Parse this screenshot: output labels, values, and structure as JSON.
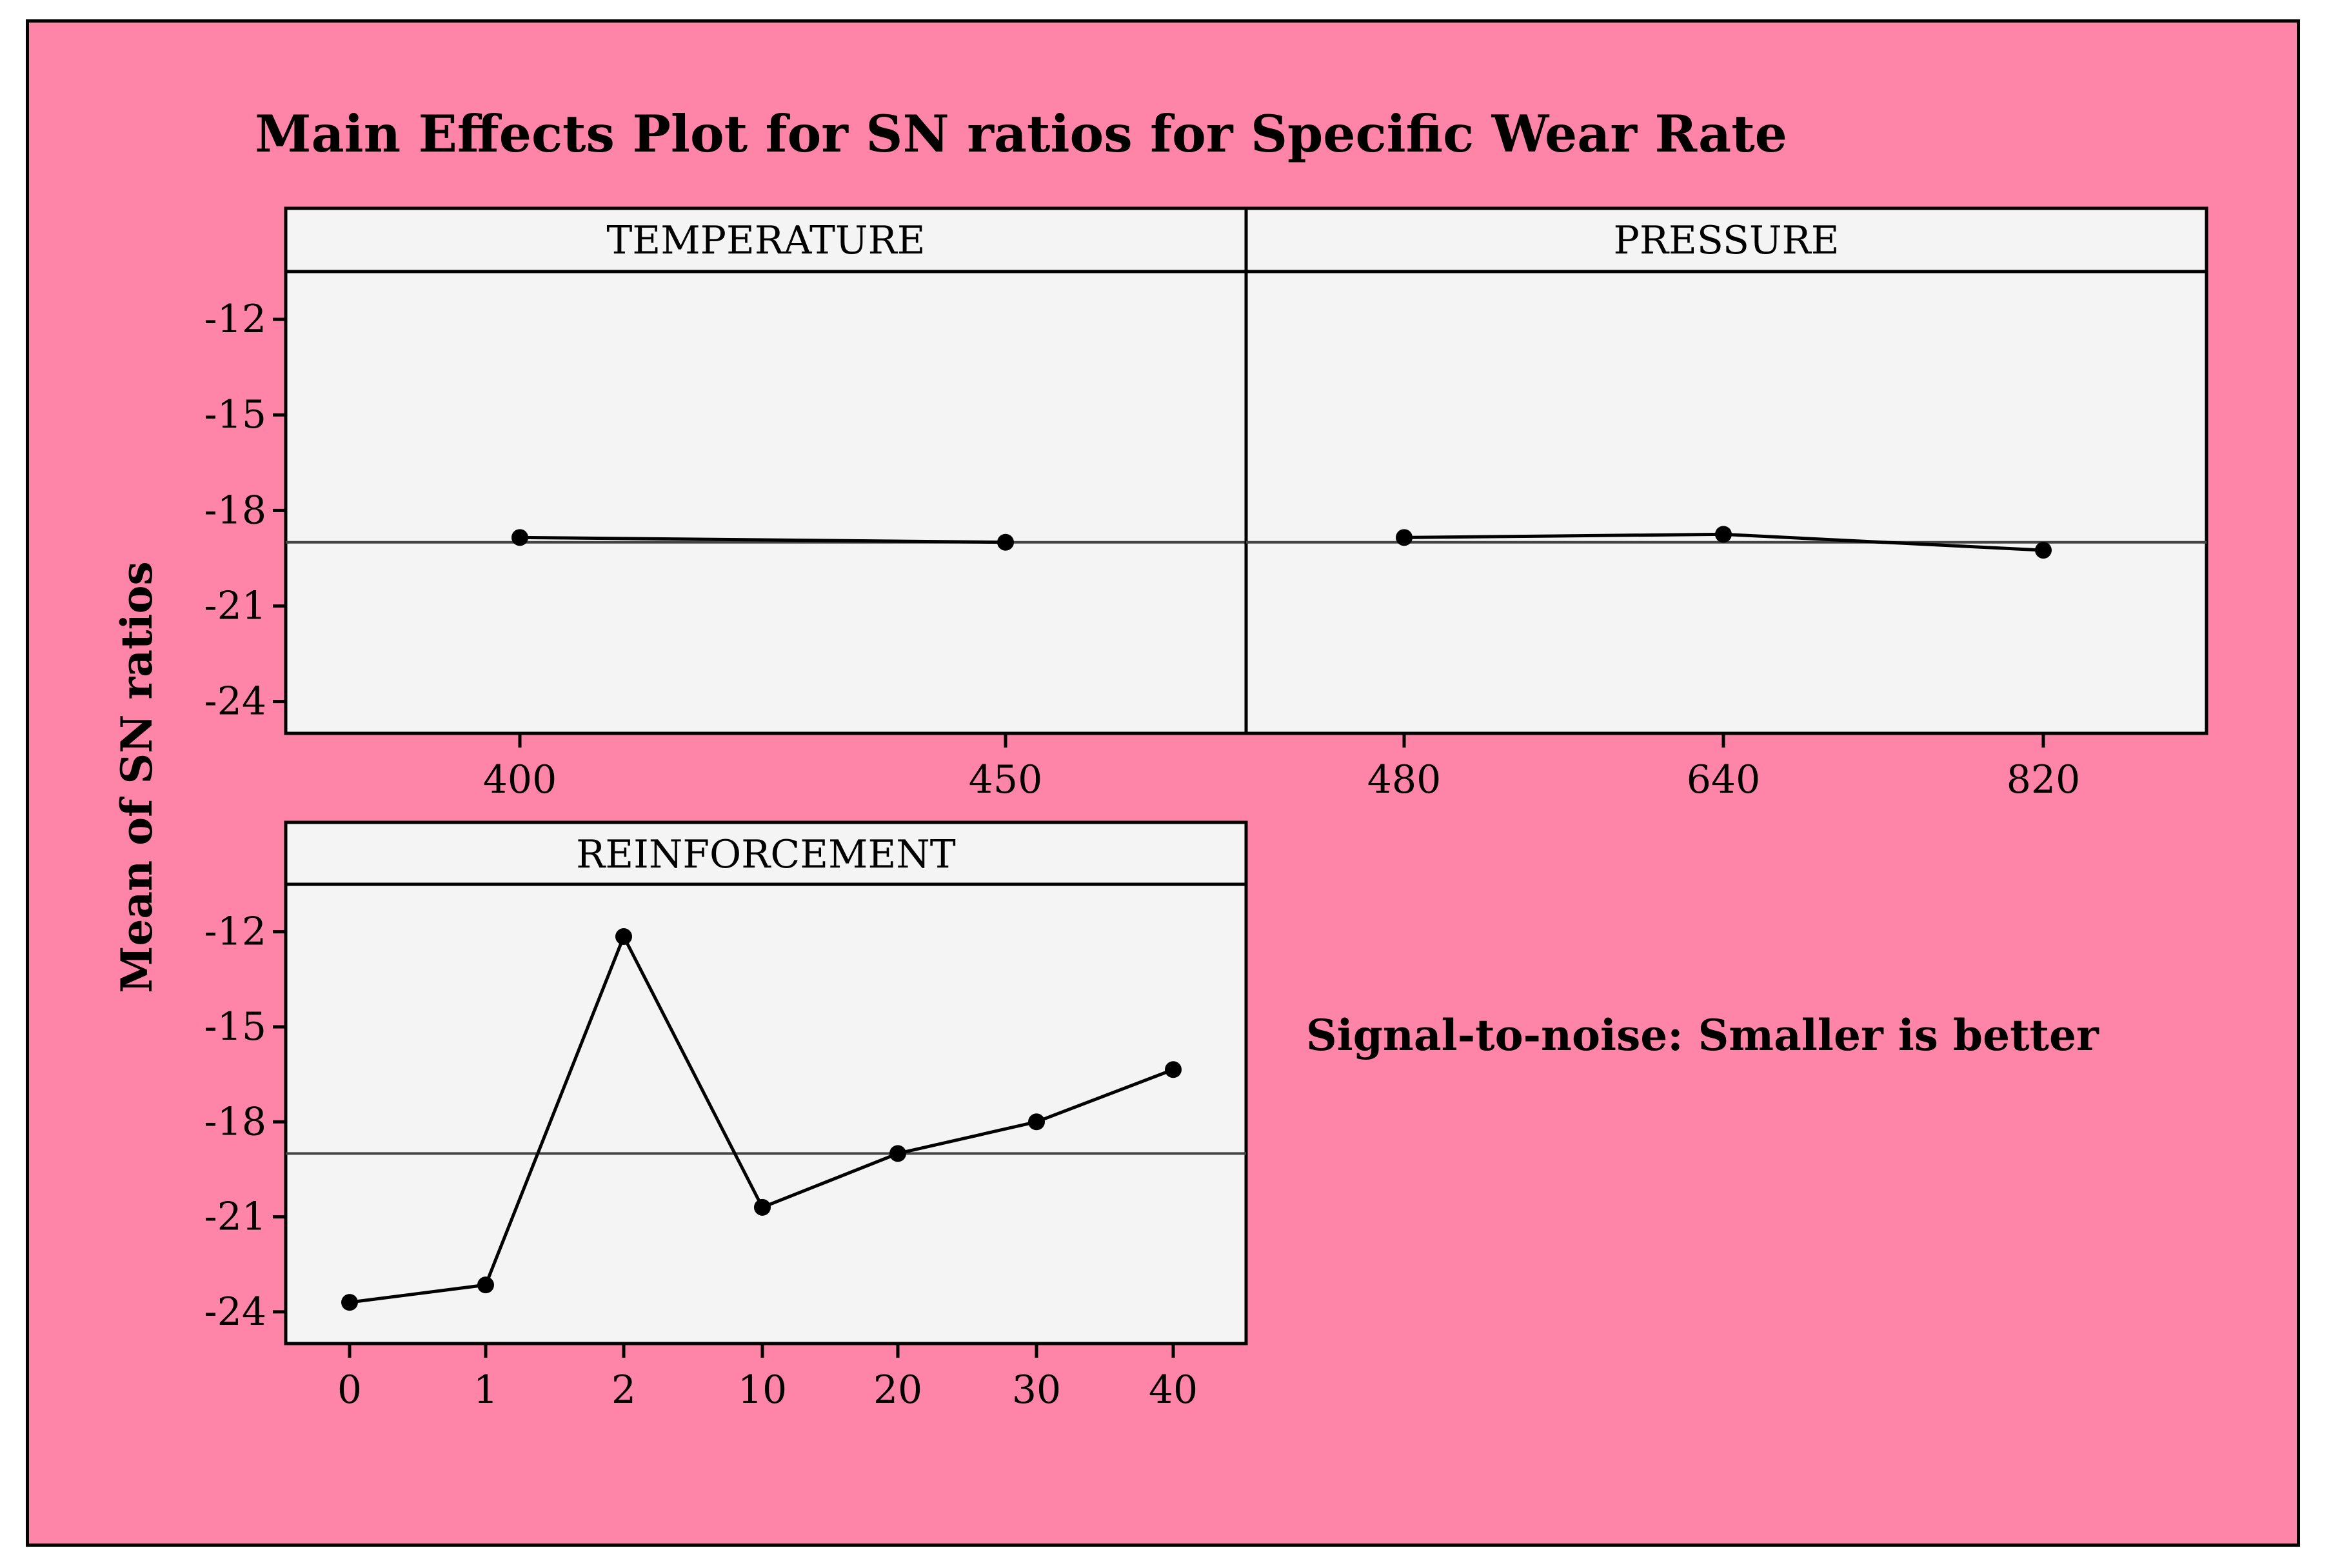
{
  "chart_data": {
    "type": "line",
    "title": "Main Effects Plot for SN ratios for Specific Wear Rate",
    "ylabel": "Mean of SN ratios",
    "note": "Signal-to-noise: Smaller is better",
    "ylim": [
      -25,
      -10.5
    ],
    "yticks": [
      "-12",
      "-15",
      "-18",
      "-21",
      "-24"
    ],
    "ytick_values": [
      -12,
      -15,
      -18,
      -21,
      -24
    ],
    "mean_line": -19.0,
    "colors": {
      "background": "#FF85A8",
      "panel": "#F4F4F4",
      "line": "#000000",
      "mean_line": "#444444"
    },
    "panels": [
      {
        "name": "TEMPERATURE",
        "categories": [
          "400",
          "450"
        ],
        "values": [
          -18.85,
          -19.0
        ]
      },
      {
        "name": "PRESSURE",
        "categories": [
          "480",
          "640",
          "820"
        ],
        "values": [
          -18.85,
          -18.75,
          -19.25
        ]
      },
      {
        "name": "REINFORCEMENT",
        "categories": [
          "0",
          "1",
          "2",
          "10",
          "20",
          "30",
          "40"
        ],
        "values": [
          -23.7,
          -23.15,
          -12.15,
          -20.7,
          -19.0,
          -18.0,
          -16.35
        ]
      }
    ]
  }
}
